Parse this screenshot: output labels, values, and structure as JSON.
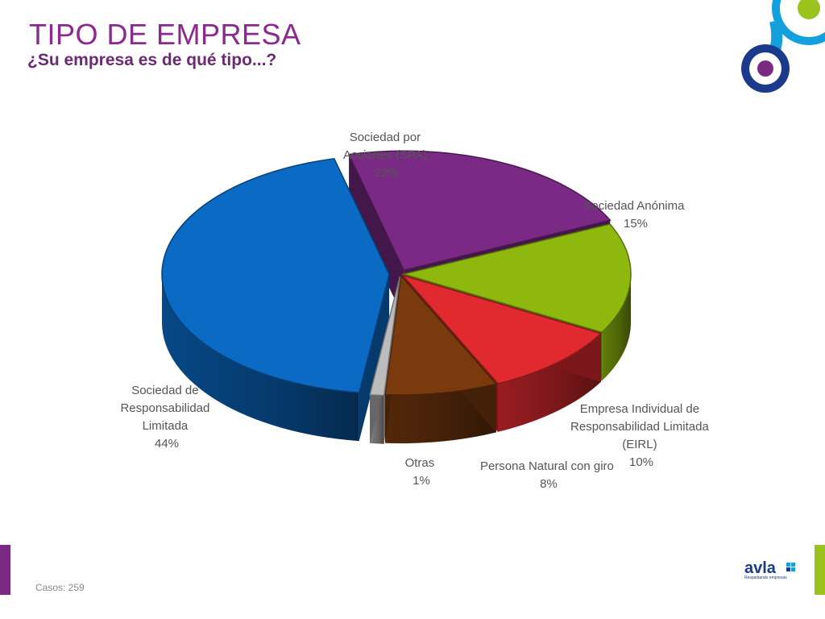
{
  "header": {
    "title": "TIPO DE EMPRESA",
    "subtitle": "¿Su empresa es de qué tipo...?"
  },
  "footer": {
    "cases": "Casos: 259",
    "brand_text": "avla",
    "brand_tagline": "Respaldando empresas"
  },
  "colors": {
    "title": "#8b2a8e",
    "logo_blue": "#1b3a8c",
    "logo_purple": "#7b2a84",
    "logo_green": "#9bc31e",
    "logo_cyan": "#14a0dc"
  },
  "chart_data": {
    "type": "pie",
    "style": "3d-exploded",
    "slices": [
      {
        "label": "Sociedad de Responsabilidad Limitada",
        "value": 44,
        "display": "44%",
        "color": "#0a6ac4"
      },
      {
        "label": "Sociedad por Acciones (SPA)",
        "value": 22,
        "display": "22%",
        "color": "#7a2a85"
      },
      {
        "label": "Sociedad Anónima",
        "value": 15,
        "display": "15%",
        "color": "#8fb80f"
      },
      {
        "label": "Empresa Individual de Responsabilidad Limitada (EIRL)",
        "value": 10,
        "display": "10%",
        "color": "#e02a2f"
      },
      {
        "label": "Persona Natural con giro",
        "value": 8,
        "display": "8%",
        "color": "#7a3a0e"
      },
      {
        "label": "Otras",
        "value": 1,
        "display": "1%",
        "color": "#bcbcbc"
      }
    ]
  }
}
